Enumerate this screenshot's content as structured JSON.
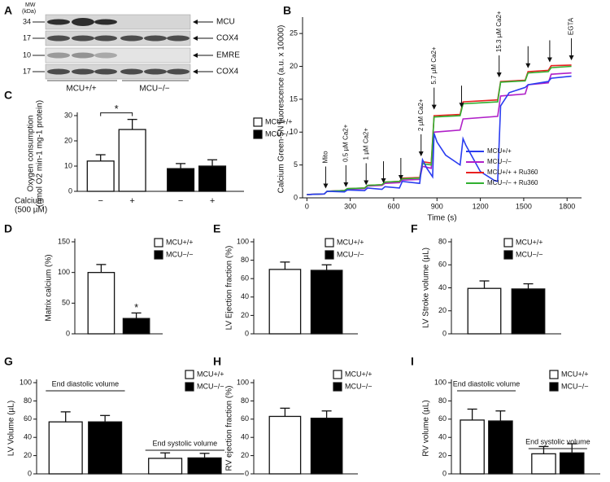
{
  "blot": {
    "panel": "A",
    "mw_label": [
      "MW",
      "(kDa)"
    ],
    "rows": [
      {
        "mw": 34,
        "protein": "MCU"
      },
      {
        "mw": 17,
        "protein": "COX4"
      },
      {
        "mw": 10,
        "protein": "EMRE"
      },
      {
        "mw": 17,
        "protein": "COX4"
      }
    ],
    "groups": [
      "MCU+/+",
      "MCU−/−"
    ]
  },
  "chart_data": [
    {
      "type": "line",
      "panel": "B",
      "xlabel": "Time (s)",
      "ylabel": [
        "Calcium Green-5N fluorescence (a.u. x 10000)"
      ],
      "xlim": [
        -30,
        1900
      ],
      "xticks": [
        0,
        300,
        600,
        900,
        1200,
        1500,
        1800
      ],
      "ylim": [
        0,
        27
      ],
      "yticks": [
        0,
        5,
        10,
        15,
        20,
        25
      ],
      "x": [
        0,
        120,
        140,
        260,
        280,
        400,
        420,
        520,
        540,
        640,
        660,
        780,
        800,
        860,
        880,
        1060,
        1080,
        1320,
        1340,
        1510,
        1530,
        1670,
        1690,
        1830
      ],
      "series": [
        {
          "name": "MCU+/+",
          "color": "#2a3cf0",
          "x": [
            0,
            120,
            140,
            260,
            280,
            400,
            420,
            520,
            540,
            640,
            660,
            780,
            800,
            830,
            870,
            880,
            900,
            960,
            1060,
            1080,
            1100,
            1200,
            1300,
            1320,
            1340,
            1400,
            1510,
            1530,
            1670,
            1690,
            1830
          ],
          "values": [
            0.5,
            0.6,
            1.0,
            0.9,
            1.2,
            1.1,
            1.5,
            1.3,
            1.7,
            1.5,
            2.5,
            2.2,
            5.8,
            4.5,
            3.2,
            9.8,
            8.5,
            6.5,
            5.0,
            9.0,
            8.0,
            4.0,
            2.6,
            2.5,
            14.0,
            16.0,
            16.8,
            17.2,
            17.7,
            18.2,
            18.5
          ]
        },
        {
          "name": "MCU−/−",
          "color": "#b020c8",
          "values": [
            0.5,
            0.6,
            1.0,
            1.1,
            1.3,
            1.4,
            1.8,
            1.9,
            2.2,
            2.3,
            2.7,
            2.8,
            4.8,
            4.5,
            10.0,
            10.3,
            12.0,
            12.4,
            15.5,
            15.8,
            17.2,
            17.5,
            18.8,
            19.0
          ]
        },
        {
          "name": "MCU+/+ + Ru360",
          "color": "#e82020",
          "values": [
            0.5,
            0.6,
            1.0,
            1.1,
            1.4,
            1.5,
            1.9,
            2.0,
            2.4,
            2.5,
            3.0,
            3.1,
            5.5,
            5.3,
            12.5,
            12.7,
            14.6,
            14.9,
            17.7,
            17.9,
            19.2,
            19.4,
            20.1,
            20.2
          ]
        },
        {
          "name": "MCU−/− + Ru360",
          "color": "#30b030",
          "values": [
            0.5,
            0.6,
            1.0,
            1.1,
            1.4,
            1.5,
            1.9,
            2.0,
            2.4,
            2.5,
            2.9,
            3.0,
            5.2,
            5.0,
            12.3,
            12.5,
            14.3,
            14.6,
            17.6,
            17.8,
            19.0,
            19.2,
            19.8,
            20.0
          ]
        }
      ],
      "annotations": [
        {
          "x": 130,
          "y": 1.3,
          "label": "Mito"
        },
        {
          "x": 270,
          "y": 1.5,
          "label": "0.5 µM Ca2+"
        },
        {
          "x": 410,
          "y": 1.8,
          "label": "1 µM Ca2+"
        },
        {
          "x": 530,
          "y": 2.1
        },
        {
          "x": 650,
          "y": 2.6
        },
        {
          "x": 790,
          "y": 6.2,
          "label": "2 µM Ca2+"
        },
        {
          "x": 880,
          "y": 13.3,
          "label": "5.7 µM Ca2+"
        },
        {
          "x": 1070,
          "y": 13.6
        },
        {
          "x": 1330,
          "y": 18.2,
          "label": "15.3 µM Ca2+"
        },
        {
          "x": 1530,
          "y": 19.6
        },
        {
          "x": 1680,
          "y": 20.5
        },
        {
          "x": 1830,
          "y": 20.8,
          "label": "EGTA"
        }
      ]
    },
    {
      "type": "bar",
      "panel": "C",
      "ylabel": [
        "Oxygen consumption",
        "(nmol O2 min-1 mg-1 protein)"
      ],
      "xlabel": [
        "Calcium",
        "(500 µM)"
      ],
      "categories": [
        "−",
        "+",
        "−",
        "+"
      ],
      "values": [
        12,
        24.5,
        9,
        10
      ],
      "errors": [
        2.5,
        4,
        2,
        2.5
      ],
      "bar_colors": [
        "#ffffff",
        "#ffffff",
        "#000000",
        "#000000"
      ],
      "ylim": [
        0,
        30
      ],
      "yticks": [
        0,
        10,
        20,
        30
      ],
      "legend": [
        {
          "name": "MCU+/+",
          "color": "#ffffff"
        },
        {
          "name": "MCU−/−",
          "color": "#000000"
        }
      ],
      "significance": {
        "label": "*",
        "bars": [
          0,
          1
        ]
      }
    },
    {
      "type": "bar",
      "panel": "D",
      "ylabel": [
        "Matrix calcium (%)"
      ],
      "values": [
        100,
        25
      ],
      "errors": [
        13,
        9
      ],
      "bar_colors": [
        "#ffffff",
        "#000000"
      ],
      "ylim": [
        0,
        150
      ],
      "yticks": [
        0,
        50,
        100,
        150
      ],
      "legend": [
        {
          "name": "MCU+/+",
          "color": "#ffffff"
        },
        {
          "name": "MCU−/−",
          "color": "#000000"
        }
      ],
      "significance": {
        "label": "*",
        "bars": [
          1
        ]
      }
    },
    {
      "type": "bar",
      "panel": "E",
      "ylabel": [
        "LV Ejection fraction (%)"
      ],
      "values": [
        70,
        69
      ],
      "errors": [
        8,
        6
      ],
      "bar_colors": [
        "#ffffff",
        "#000000"
      ],
      "ylim": [
        0,
        100
      ],
      "yticks": [
        0,
        20,
        40,
        60,
        80,
        100
      ],
      "legend": [
        {
          "name": "MCU+/+",
          "color": "#ffffff"
        },
        {
          "name": "MCU−/−",
          "color": "#000000"
        }
      ]
    },
    {
      "type": "bar",
      "panel": "F",
      "ylabel": [
        "LV Stroke volume (µL)"
      ],
      "values": [
        39.5,
        39
      ],
      "errors": [
        6.5,
        4.5
      ],
      "bar_colors": [
        "#ffffff",
        "#000000"
      ],
      "ylim": [
        0,
        80
      ],
      "yticks": [
        0,
        20,
        40,
        60,
        80
      ],
      "legend": [
        {
          "name": "MCU+/+",
          "color": "#ffffff"
        },
        {
          "name": "MCU−/−",
          "color": "#000000"
        }
      ]
    },
    {
      "type": "bar",
      "panel": "G",
      "ylabel": [
        "LV Volume (µL)"
      ],
      "values": [
        57,
        57,
        17,
        17.5
      ],
      "errors": [
        11,
        7,
        6,
        5
      ],
      "bar_colors": [
        "#ffffff",
        "#000000",
        "#ffffff",
        "#000000"
      ],
      "ylim": [
        0,
        100
      ],
      "yticks": [
        0,
        20,
        40,
        60,
        80,
        100
      ],
      "groups": [
        "End diastolic volume",
        "End systolic volume"
      ],
      "legend": [
        {
          "name": "MCU+/+",
          "color": "#ffffff"
        },
        {
          "name": "MCU−/−",
          "color": "#000000"
        }
      ]
    },
    {
      "type": "bar",
      "panel": "H",
      "ylabel": [
        "RV ejection fraction (%)"
      ],
      "values": [
        63,
        61
      ],
      "errors": [
        9,
        8
      ],
      "bar_colors": [
        "#ffffff",
        "#000000"
      ],
      "ylim": [
        0,
        100
      ],
      "yticks": [
        0,
        20,
        40,
        60,
        80,
        100
      ],
      "legend": [
        {
          "name": "MCU+/+",
          "color": "#ffffff"
        },
        {
          "name": "MCU−/−",
          "color": "#000000"
        }
      ]
    },
    {
      "type": "bar",
      "panel": "I",
      "ylabel": [
        "RV volume (µL)"
      ],
      "values": [
        59,
        58,
        22,
        23
      ],
      "errors": [
        12,
        11,
        8,
        10
      ],
      "bar_colors": [
        "#ffffff",
        "#000000",
        "#ffffff",
        "#000000"
      ],
      "ylim": [
        0,
        100
      ],
      "yticks": [
        0,
        20,
        40,
        60,
        80,
        100
      ],
      "groups": [
        "End diastolic volume",
        "End systolic volume"
      ],
      "legend": [
        {
          "name": "MCU+/+",
          "color": "#ffffff"
        },
        {
          "name": "MCU−/−",
          "color": "#000000"
        }
      ]
    }
  ]
}
